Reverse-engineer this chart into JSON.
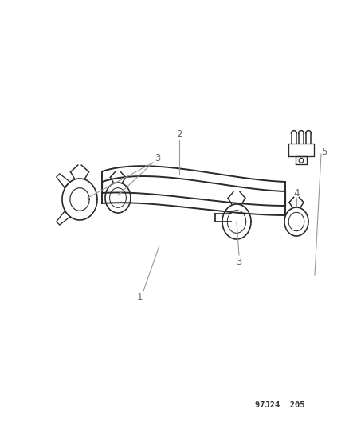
{
  "bg_color": "#ffffff",
  "line_color": "#2a2a2a",
  "label_color": "#666666",
  "leader_color": "#999999",
  "diagram_code": "97J24  205",
  "figsize": [
    4.38,
    5.33
  ],
  "dpi": 100,
  "hose_lw": 1.4,
  "clamp_lw": 1.2,
  "label_fontsize": 8.5,
  "code_fontsize": 7.5,
  "xlim": [
    0,
    438
  ],
  "ylim": [
    0,
    533
  ]
}
